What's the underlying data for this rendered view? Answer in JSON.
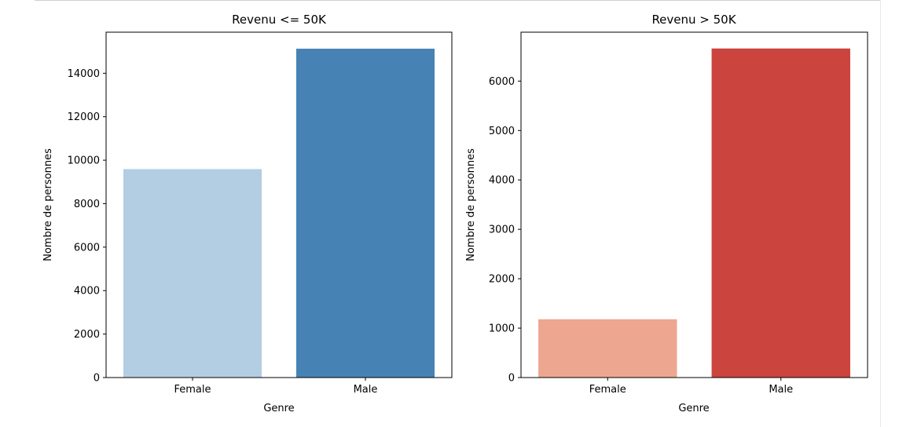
{
  "chart_data": [
    {
      "type": "bar",
      "title": "Revenu <= 50K",
      "xlabel": "Genre",
      "ylabel": "Nombre de personnes",
      "categories": [
        "Female",
        "Male"
      ],
      "values": [
        9590,
        15130
      ],
      "colors": [
        "#b3cde3",
        "#4682b4"
      ],
      "ylim": [
        0,
        15890
      ],
      "yticks": [
        0,
        2000,
        4000,
        6000,
        8000,
        10000,
        12000,
        14000
      ],
      "grid": false
    },
    {
      "type": "bar",
      "title": "Revenu > 50K",
      "xlabel": "Genre",
      "ylabel": "Nombre de personnes",
      "categories": [
        "Female",
        "Male"
      ],
      "values": [
        1180,
        6660
      ],
      "colors": [
        "#eda68f",
        "#cb443e"
      ],
      "ylim": [
        0,
        6990
      ],
      "yticks": [
        0,
        1000,
        2000,
        3000,
        4000,
        5000,
        6000
      ],
      "grid": false
    }
  ]
}
